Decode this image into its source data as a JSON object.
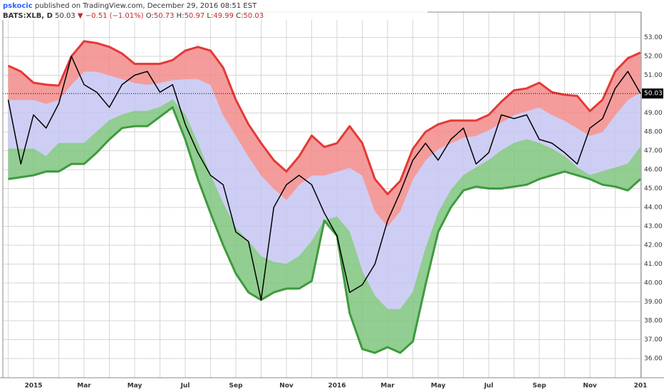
{
  "header": {
    "user": "pskocic",
    "published": "published on TradingView.com, December 29, 2016 08:51 EST",
    "symbol": "BATS:XLB, D",
    "last": "50.03",
    "change": "▼ −0.51 (−1.01%)",
    "ohlc": [
      {
        "label": "O:",
        "value": "50.73"
      },
      {
        "label": "H:",
        "value": "50.97"
      },
      {
        "label": "L:",
        "value": "49.99"
      },
      {
        "label": "C:",
        "value": "50.03"
      }
    ]
  },
  "chart_data": {
    "type": "line",
    "categories": [
      null,
      null,
      "2015",
      null,
      null,
      null,
      "Mar",
      null,
      null,
      null,
      "May",
      null,
      null,
      null,
      "Jul",
      null,
      null,
      null,
      "Sep",
      null,
      null,
      null,
      "Nov",
      null,
      null,
      null,
      "2016",
      null,
      null,
      null,
      "Mar",
      null,
      null,
      null,
      "May",
      null,
      null,
      null,
      "Jul",
      null,
      null,
      null,
      "Sep",
      null,
      null,
      null,
      "Nov",
      null,
      null,
      null,
      "201"
    ],
    "series": [
      {
        "color": "#e53935",
        "values": [
          51.5,
          51.2,
          50.6,
          50.5,
          50.45,
          52.0,
          52.8,
          52.7,
          52.5,
          52.15,
          51.6,
          51.6,
          51.6,
          51.8,
          52.3,
          52.5,
          52.3,
          51.4,
          49.7,
          48.4,
          47.4,
          46.5,
          45.9,
          46.7,
          47.8,
          47.2,
          47.4,
          48.3,
          47.4,
          45.5,
          44.7,
          45.4,
          47.1,
          48.0,
          48.4,
          48.6,
          48.6,
          48.6,
          48.9,
          49.6,
          50.2,
          50.3,
          50.6,
          50.1,
          49.96,
          49.9,
          49.1,
          49.7,
          51.2,
          51.9,
          52.2
        ]
      },
      {
        "color": "#f4a0a0",
        "values": [
          49.7,
          49.7,
          49.7,
          49.5,
          49.7,
          50.5,
          51.2,
          51.2,
          51.0,
          50.8,
          50.6,
          50.5,
          50.6,
          50.75,
          50.8,
          50.8,
          50.5,
          48.9,
          47.8,
          46.7,
          45.7,
          45.0,
          44.4,
          45.2,
          45.7,
          45.7,
          45.9,
          46.1,
          45.7,
          43.8,
          43.0,
          43.8,
          45.5,
          46.5,
          47.1,
          47.4,
          47.7,
          47.8,
          48.1,
          48.5,
          48.9,
          49.1,
          49.3,
          48.9,
          48.6,
          48.2,
          47.8,
          48.0,
          48.9,
          49.7,
          50.1
        ]
      },
      {
        "color": "#8fcf8f",
        "values": [
          47.1,
          47.1,
          47.1,
          46.7,
          47.4,
          47.4,
          47.4,
          48.0,
          48.6,
          48.9,
          49.1,
          49.1,
          49.3,
          49.7,
          48.9,
          47.4,
          45.7,
          44.2,
          42.9,
          42.2,
          41.4,
          41.1,
          41.0,
          41.4,
          42.2,
          43.3,
          43.5,
          42.7,
          40.6,
          39.3,
          38.6,
          38.6,
          39.5,
          41.8,
          43.7,
          44.9,
          45.7,
          46.1,
          46.5,
          47.0,
          47.4,
          47.6,
          47.4,
          47.1,
          46.7,
          46.1,
          45.7,
          45.9,
          46.1,
          46.3,
          47.2
        ]
      },
      {
        "color": "#3d9b3d",
        "values": [
          45.5,
          45.6,
          45.7,
          45.9,
          45.9,
          46.3,
          46.3,
          46.9,
          47.6,
          48.2,
          48.3,
          48.3,
          48.8,
          49.3,
          47.6,
          45.5,
          43.7,
          42.0,
          40.5,
          39.5,
          39.1,
          39.5,
          39.7,
          39.7,
          40.1,
          43.3,
          42.5,
          38.4,
          36.5,
          36.3,
          36.6,
          36.3,
          36.9,
          39.9,
          42.7,
          44.0,
          44.9,
          45.1,
          45.0,
          45.0,
          45.1,
          45.2,
          45.5,
          45.7,
          45.9,
          45.7,
          45.5,
          45.2,
          45.1,
          44.9,
          45.5
        ]
      },
      {
        "color": "#000000",
        "values": [
          49.7,
          46.3,
          48.9,
          48.2,
          49.5,
          52.0,
          50.5,
          50.1,
          49.3,
          50.5,
          51.0,
          51.2,
          50.1,
          50.5,
          48.4,
          46.9,
          45.7,
          45.2,
          42.7,
          42.2,
          39.1,
          44.0,
          45.2,
          45.7,
          45.2,
          43.7,
          42.5,
          39.5,
          39.9,
          41.0,
          43.3,
          44.8,
          46.5,
          47.4,
          46.5,
          47.6,
          48.2,
          46.3,
          46.9,
          48.9,
          48.7,
          48.9,
          47.6,
          47.4,
          46.9,
          46.3,
          48.2,
          48.7,
          50.3,
          51.2,
          50.03
        ]
      }
    ],
    "fills": [
      "#f28b8b",
      "#c6c6f3",
      "#7fc47f"
    ],
    "last_price": {
      "value": 50.03,
      "label": "50.03"
    },
    "ylim": [
      34.98,
      54.34
    ],
    "yticks": [
      {
        "value": 36,
        "label": "36.00"
      },
      {
        "value": 37,
        "label": "37.00"
      },
      {
        "value": 38,
        "label": "38.00"
      },
      {
        "value": 39,
        "label": "39.00"
      },
      {
        "value": 40,
        "label": "40.00"
      },
      {
        "value": 41,
        "label": "41.00"
      },
      {
        "value": 42,
        "label": "42.00"
      },
      {
        "value": 43,
        "label": "43.00"
      },
      {
        "value": 44,
        "label": "44.00"
      },
      {
        "value": 45,
        "label": "45.00"
      },
      {
        "value": 46,
        "label": "46.00"
      },
      {
        "value": 47,
        "label": "47.00"
      },
      {
        "value": 48,
        "label": "48.00"
      },
      {
        "value": 49,
        "label": "49.00"
      },
      {
        "value": 51,
        "label": "51.00"
      },
      {
        "value": 52,
        "label": "52.00"
      },
      {
        "value": 53,
        "label": "53.00"
      }
    ],
    "grid": true
  }
}
